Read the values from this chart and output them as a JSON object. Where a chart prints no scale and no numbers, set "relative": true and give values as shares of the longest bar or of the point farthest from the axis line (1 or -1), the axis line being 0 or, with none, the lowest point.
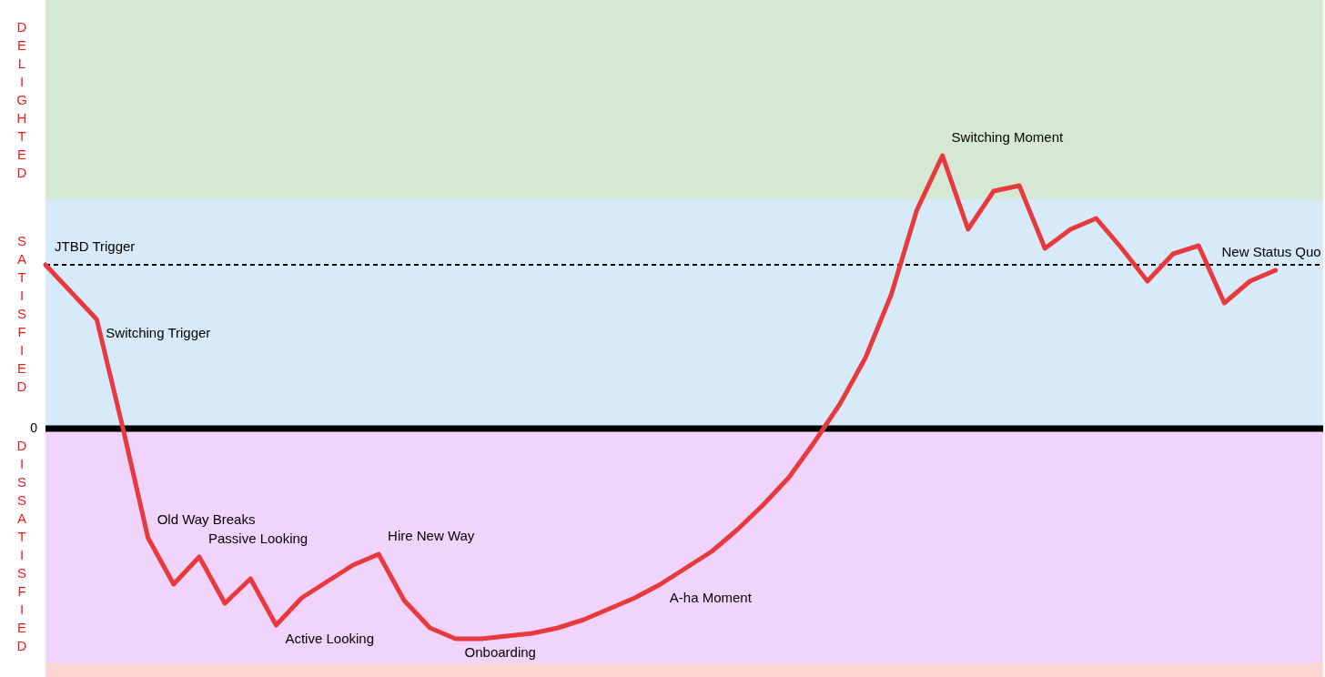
{
  "chart_data": {
    "type": "line",
    "relative": true,
    "categories": [
      null,
      null,
      null,
      null,
      null,
      null,
      null,
      null,
      null,
      null,
      null,
      null,
      null,
      null,
      null,
      null,
      null,
      null,
      null,
      null,
      null,
      null,
      null,
      null,
      null,
      null,
      null,
      null,
      null,
      null,
      null,
      null,
      null,
      null,
      null,
      null,
      null,
      null,
      null,
      null,
      null,
      null,
      null,
      null,
      null,
      null,
      null,
      null,
      null
    ],
    "series": [
      {
        "color": "#e8393f",
        "marker": "none",
        "line_style": "solid",
        "values": [
          0.6,
          0.5,
          0.4,
          0.01,
          -0.4,
          -0.57,
          -0.47,
          -0.64,
          -0.55,
          -0.72,
          -0.62,
          -0.56,
          -0.5,
          -0.46,
          -0.63,
          -0.73,
          -0.77,
          -0.77,
          -0.76,
          -0.75,
          -0.73,
          -0.7,
          -0.66,
          -0.62,
          -0.57,
          -0.51,
          -0.45,
          -0.37,
          -0.28,
          -0.18,
          -0.05,
          0.09,
          0.26,
          0.49,
          0.8,
          1,
          0.73,
          0.87,
          0.89,
          0.66,
          0.73,
          0.77,
          0.66,
          0.54,
          0.64,
          0.67,
          0.46,
          0.54,
          0.58
        ]
      }
    ],
    "bands": [
      {
        "axis": "y",
        "from": 0.84,
        "to": 1.57,
        "label": "DELIGHTED",
        "color": "#d5e8d4"
      },
      {
        "axis": "y",
        "from": 0,
        "to": 0.84,
        "label": "SATISFIED",
        "color": "#d6eafa"
      },
      {
        "axis": "y",
        "from": -0.86,
        "to": 0,
        "label": "DISSATISFIED",
        "color": "#f1d4fb"
      },
      {
        "axis": "y",
        "from": -0.91,
        "to": -0.86,
        "color": "#fdd8d3"
      }
    ],
    "ref_lines": [
      {
        "axis": "y",
        "value": 0,
        "label": "0",
        "color": "#000000",
        "line_style": "solid"
      },
      {
        "axis": "y",
        "value": 0.6,
        "color": "#000000",
        "line_style": "dashed"
      }
    ],
    "annotations": [
      "JTBD Trigger",
      "Switching Trigger",
      "Old Way Breaks",
      "Passive Looking",
      "Active Looking",
      "Hire New Way",
      "Onboarding",
      "A-ha Moment",
      "Switching Moment",
      "New Status Quo"
    ]
  }
}
